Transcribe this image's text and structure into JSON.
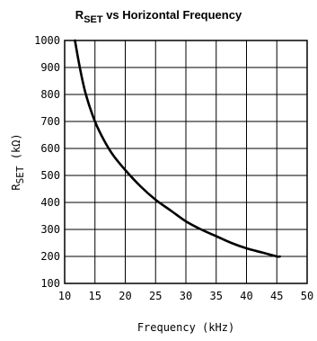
{
  "chart_data": {
    "type": "line",
    "title": {
      "main": "R",
      "sub": "SET",
      "rest": " vs Horizontal Frequency"
    },
    "xlabel": "Frequency (kHz)",
    "ylabel": {
      "main": "R",
      "sub": "SET",
      "rest": " (kΩ)"
    },
    "xlim": [
      10,
      50
    ],
    "ylim": [
      100,
      1000
    ],
    "xticks": [
      "10",
      "15",
      "20",
      "25",
      "30",
      "35",
      "40",
      "45",
      "50"
    ],
    "yticks": [
      "100",
      "200",
      "300",
      "400",
      "500",
      "600",
      "700",
      "800",
      "900",
      "1000"
    ],
    "grid": true,
    "series": [
      {
        "x": [
          11.7,
          12.5,
          13.5,
          15,
          16.5,
          18,
          20,
          22.5,
          25,
          27.5,
          30,
          32.5,
          35,
          37.5,
          40,
          42.5,
          45,
          45.5
        ],
        "y": [
          1000,
          900,
          800,
          700,
          630,
          575,
          520,
          460,
          410,
          370,
          330,
          300,
          275,
          250,
          230,
          215,
          200,
          200
        ]
      }
    ]
  }
}
